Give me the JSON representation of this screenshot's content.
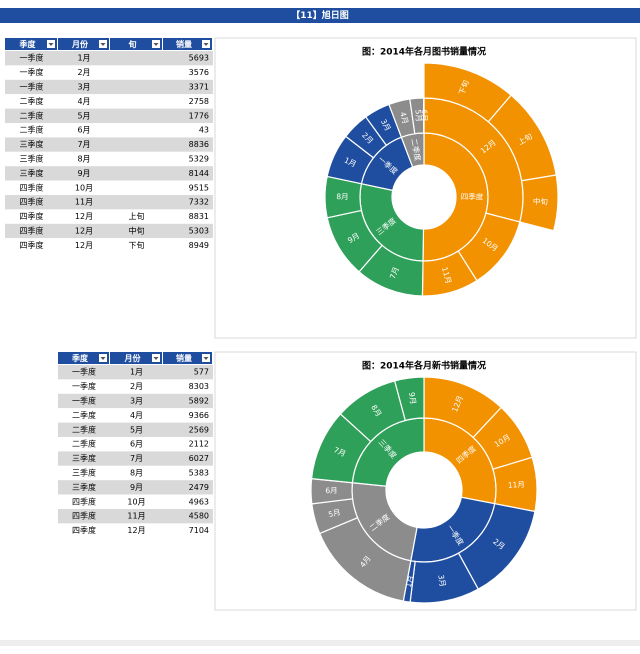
{
  "header": {
    "title": "【11】旭日图"
  },
  "tables": [
    {
      "columns": [
        "季度",
        "月份",
        "旬",
        "销量"
      ],
      "rows": [
        [
          "一季度",
          "1月",
          null,
          5693
        ],
        [
          "一季度",
          "2月",
          null,
          3576
        ],
        [
          "一季度",
          "3月",
          null,
          3371
        ],
        [
          "二季度",
          "4月",
          null,
          2758
        ],
        [
          "二季度",
          "5月",
          null,
          1776
        ],
        [
          "二季度",
          "6月",
          null,
          43
        ],
        [
          "三季度",
          "7月",
          null,
          8836
        ],
        [
          "三季度",
          "8月",
          null,
          5329
        ],
        [
          "三季度",
          "9月",
          null,
          8144
        ],
        [
          "四季度",
          "10月",
          null,
          9515
        ],
        [
          "四季度",
          "11月",
          null,
          7332
        ],
        [
          "四季度",
          "12月",
          "上旬",
          8831
        ],
        [
          "四季度",
          "12月",
          "中旬",
          5303
        ],
        [
          "四季度",
          "12月",
          "下旬",
          8949
        ]
      ]
    },
    {
      "columns": [
        "季度",
        "月份",
        "销量"
      ],
      "rows": [
        [
          "一季度",
          "1月",
          577
        ],
        [
          "一季度",
          "2月",
          8303
        ],
        [
          "一季度",
          "3月",
          5892
        ],
        [
          "二季度",
          "4月",
          9366
        ],
        [
          "二季度",
          "5月",
          2569
        ],
        [
          "二季度",
          "6月",
          2112
        ],
        [
          "三季度",
          "7月",
          6027
        ],
        [
          "三季度",
          "8月",
          5383
        ],
        [
          "三季度",
          "9月",
          2479
        ],
        [
          "四季度",
          "10月",
          4963
        ],
        [
          "四季度",
          "11月",
          4580
        ],
        [
          "四季度",
          "12月",
          7104
        ]
      ]
    }
  ],
  "chart_data": [
    {
      "type": "sunburst",
      "title": "图：2014年各月图书销量情况",
      "series": [
        {
          "name": "四季度",
          "color": "#f39200",
          "children": [
            {
              "name": "12月",
              "children": [
                {
                  "name": "下旬",
                  "value": 8949
                },
                {
                  "name": "上旬",
                  "value": 8831
                },
                {
                  "name": "中旬",
                  "value": 5303
                }
              ]
            },
            {
              "name": "10月",
              "value": 9515
            },
            {
              "name": "11月",
              "value": 7332
            }
          ]
        },
        {
          "name": "三季度",
          "color": "#2fa05a",
          "children": [
            {
              "name": "7月",
              "value": 8836
            },
            {
              "name": "9月",
              "value": 8144
            },
            {
              "name": "8月",
              "value": 5329
            }
          ]
        },
        {
          "name": "一季度",
          "color": "#1f4ea0",
          "children": [
            {
              "name": "1月",
              "value": 5693
            },
            {
              "name": "2月",
              "value": 3576
            },
            {
              "name": "3月",
              "value": 3371
            }
          ]
        },
        {
          "name": "二季度",
          "color": "#8c8c8c",
          "children": [
            {
              "name": "4月",
              "value": 2758
            },
            {
              "name": "5月",
              "value": 1776
            },
            {
              "name": "6月",
              "value": 43
            }
          ]
        }
      ]
    },
    {
      "type": "sunburst",
      "title": "图：2014年各月新书销量情况",
      "series": [
        {
          "name": "四季度",
          "color": "#f39200",
          "children": [
            {
              "name": "12月",
              "value": 7104
            },
            {
              "name": "10月",
              "value": 4963
            },
            {
              "name": "11月",
              "value": 4580
            }
          ]
        },
        {
          "name": "一季度",
          "color": "#1f4ea0",
          "children": [
            {
              "name": "2月",
              "value": 8303
            },
            {
              "name": "3月",
              "value": 5892
            },
            {
              "name": "1月",
              "value": 577
            }
          ]
        },
        {
          "name": "二季度",
          "color": "#8c8c8c",
          "children": [
            {
              "name": "4月",
              "value": 9366
            },
            {
              "name": "5月",
              "value": 2569
            },
            {
              "name": "6月",
              "value": 2112
            }
          ]
        },
        {
          "name": "三季度",
          "color": "#2fa05a",
          "children": [
            {
              "name": "7月",
              "value": 6027
            },
            {
              "name": "8月",
              "value": 5383
            },
            {
              "name": "9月",
              "value": 2479
            }
          ]
        }
      ]
    }
  ]
}
